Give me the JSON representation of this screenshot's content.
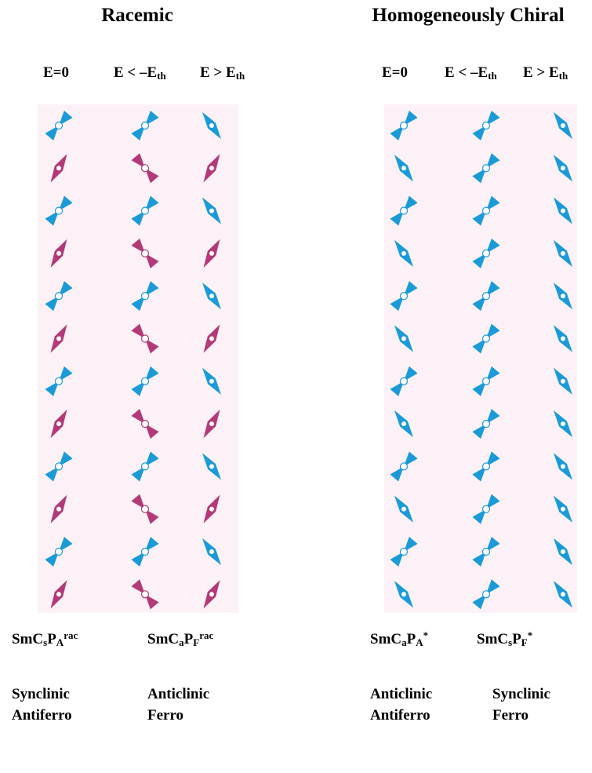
{
  "racemic": {
    "title": "Racemic",
    "fields": [
      [
        "E=0"
      ],
      [
        "E < –E",
        "th"
      ],
      [
        "E > E",
        "th"
      ]
    ],
    "phases": [
      [
        "SmC",
        "s",
        "P",
        "A",
        "rac"
      ],
      [
        "SmC",
        "a",
        "P",
        "F",
        "rac"
      ]
    ],
    "descriptions": [
      [
        "Synclinic",
        "Antiferro"
      ],
      [
        "Anticlinic",
        "Ferro"
      ]
    ]
  },
  "chiral": {
    "title": "Homogeneously Chiral",
    "fields": [
      [
        "E=0"
      ],
      [
        "E < –E",
        "th"
      ],
      [
        "E > E",
        "th"
      ]
    ],
    "phases": [
      [
        "SmC",
        "a",
        "P",
        "A",
        "*"
      ],
      [
        "SmC",
        "s",
        "P",
        "F",
        "*"
      ]
    ],
    "descriptions": [
      [
        "Anticlinic",
        "Antiferro"
      ],
      [
        "Synclinic",
        "Ferro"
      ]
    ]
  }
}
